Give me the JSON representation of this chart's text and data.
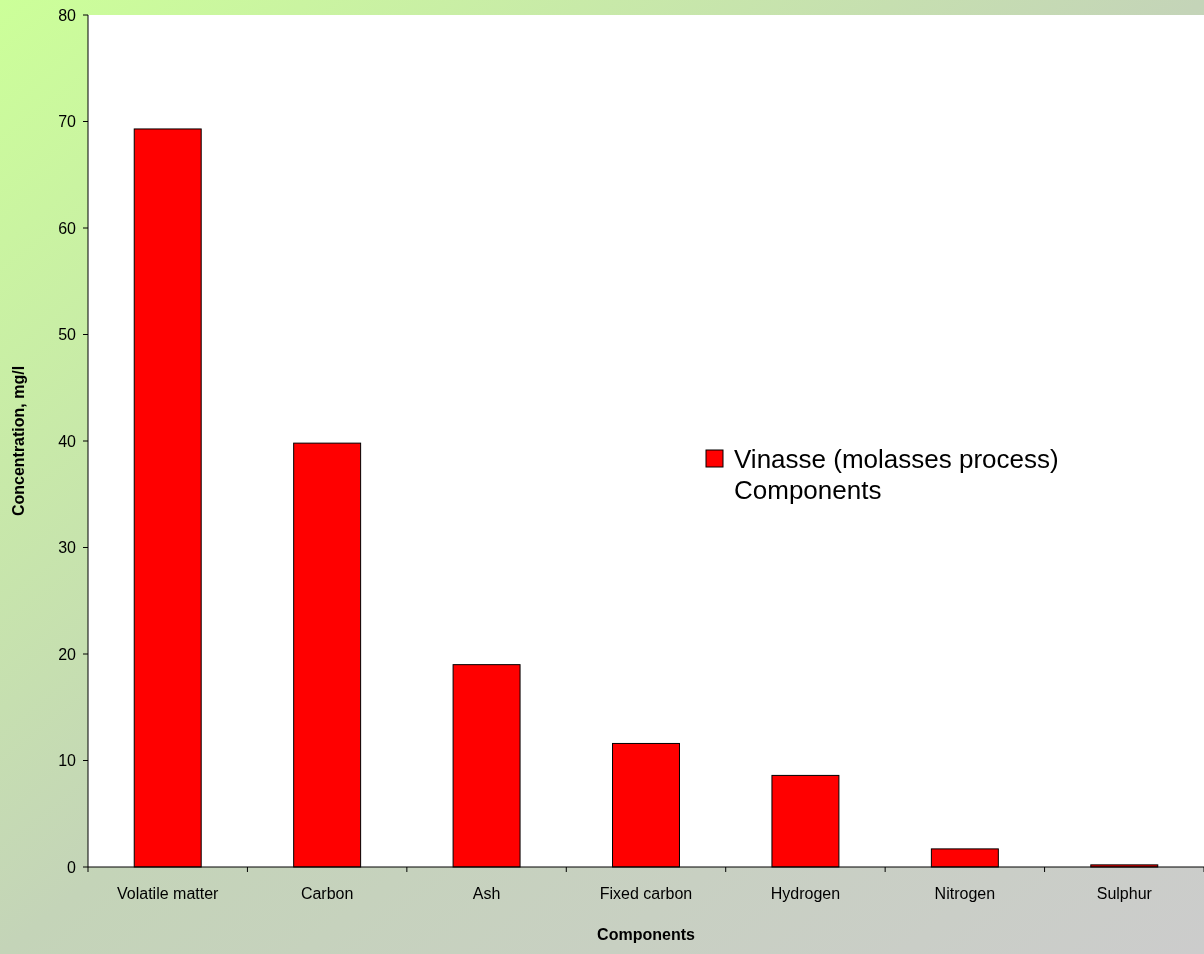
{
  "chart_data": {
    "type": "bar",
    "xlabel": "Components",
    "ylabel": "Concentration, mg/l",
    "categories": [
      "Volatile matter",
      "Carbon",
      "Ash",
      "Fixed carbon",
      "Hydrogen",
      "Nitrogen",
      "Sulphur"
    ],
    "series": [
      {
        "name": "Vinasse (molasses process) Components",
        "color": "#ff0000",
        "values": [
          69.3,
          39.8,
          19.0,
          11.6,
          8.6,
          1.7,
          0.2
        ]
      }
    ],
    "ylim": [
      0,
      80
    ],
    "yticks": [
      0,
      10,
      20,
      30,
      40,
      50,
      60,
      70,
      80
    ],
    "legend": "right",
    "grid": false
  }
}
